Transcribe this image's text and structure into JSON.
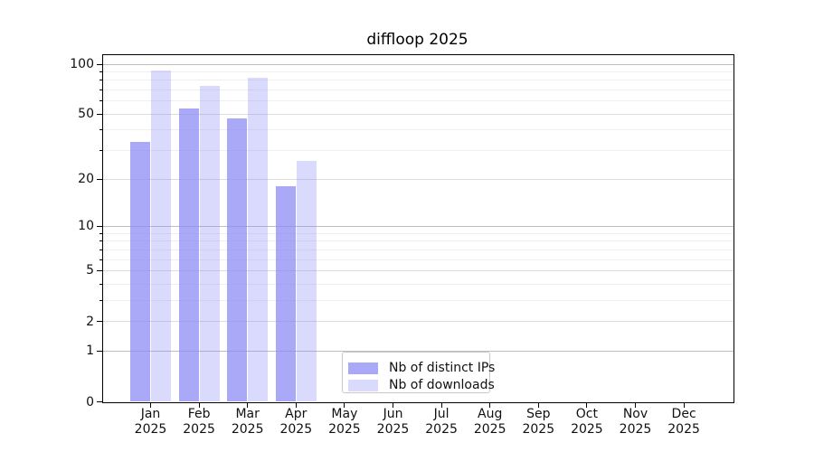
{
  "chart_data": {
    "type": "bar",
    "title": "diffloop 2025",
    "year": "2025",
    "categories": [
      "Jan",
      "Feb",
      "Mar",
      "Apr",
      "May",
      "Jun",
      "Jul",
      "Aug",
      "Sep",
      "Oct",
      "Nov",
      "Dec"
    ],
    "series": [
      {
        "name": "Nb of distinct IPs",
        "color": "#8C8CF5BF",
        "values": [
          34,
          54,
          47,
          18,
          0,
          0,
          0,
          0,
          0,
          0,
          0,
          0
        ]
      },
      {
        "name": "Nb of downloads",
        "color": "#8C8CF552",
        "values": [
          92,
          74,
          83,
          26,
          0,
          0,
          0,
          0,
          0,
          0,
          0,
          0
        ]
      }
    ],
    "yscale": "log10(value+1)",
    "yticks": [
      0,
      1,
      2,
      5,
      10,
      20,
      50,
      100
    ],
    "yticks_mid": [
      2,
      5,
      20,
      50
    ],
    "yticks_major": [
      1,
      10,
      100
    ],
    "yticks_minor": [
      3,
      4,
      6,
      7,
      8,
      9,
      30,
      40,
      60,
      70,
      80,
      90
    ],
    "ylim": [
      0,
      115
    ],
    "grid": "horizontal",
    "legend_position": "inside-bottom-center"
  },
  "colors": {
    "background": "#ffffff",
    "axis_spine": "#000000",
    "tick_text": "#111111",
    "grid_major": "#bdbdbd",
    "grid_mid": "#dcdcdc",
    "grid_minor": "#efefef",
    "legend_border": "#c8c8c8",
    "legend_bg": "#ffffff"
  }
}
